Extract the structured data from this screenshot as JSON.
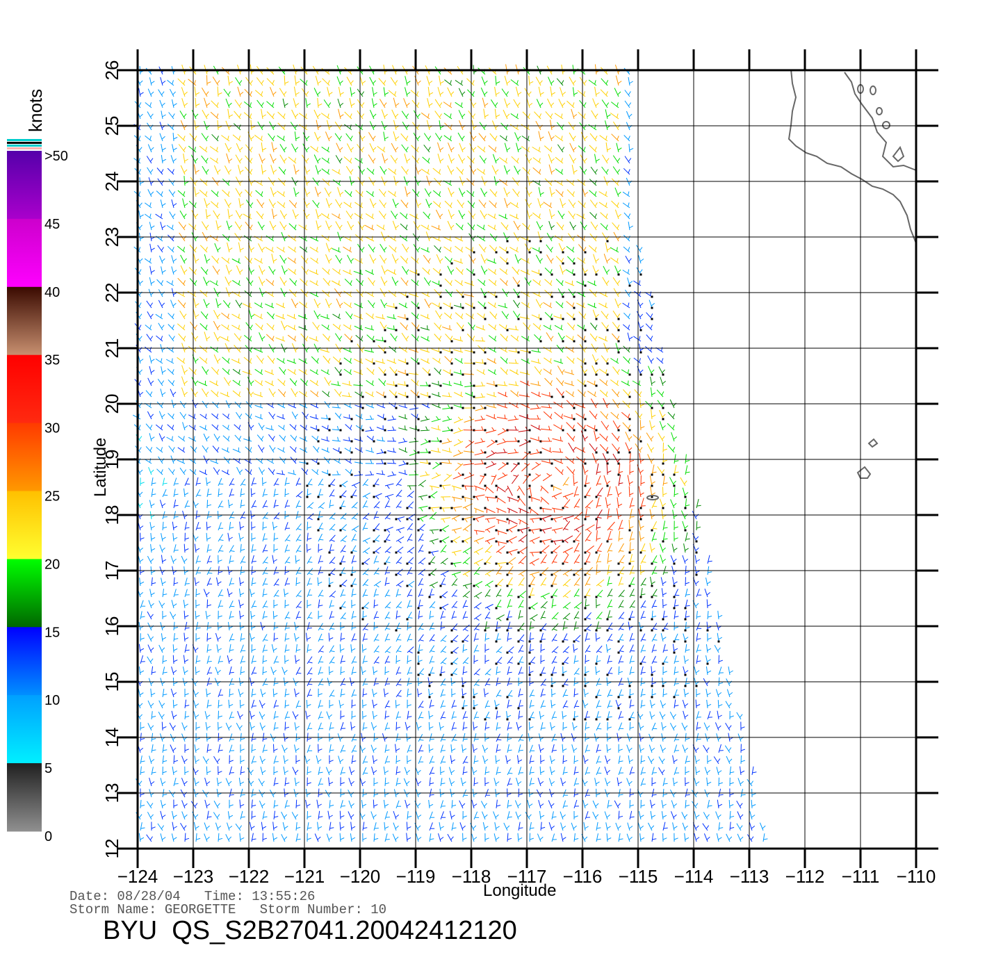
{
  "map": {
    "x_axis": {
      "title": "Longitude",
      "ticks": [
        "-124",
        "-123",
        "-122",
        "-121",
        "-120",
        "-119",
        "-118",
        "-117",
        "-116",
        "-115",
        "-114",
        "-113",
        "-112",
        "-111",
        "-110"
      ]
    },
    "y_axis": {
      "title": "Latitude",
      "ticks": [
        "12",
        "13",
        "14",
        "15",
        "16",
        "17",
        "18",
        "19",
        "20",
        "21",
        "22",
        "23",
        "24",
        "25",
        "26"
      ]
    },
    "lon_range": [
      -124,
      -110
    ],
    "lat_range": [
      12,
      26
    ],
    "grid": true,
    "storm_center_lonlat": [
      -116.5,
      18.6
    ]
  },
  "colorbar": {
    "unit_label": "knots",
    "labels": [
      ">50",
      "45",
      "40",
      "35",
      "30",
      "25",
      "20",
      "15",
      "10",
      "5",
      "0"
    ],
    "bands": [
      {
        "from": "#5500aa",
        "to": "#aa00cc"
      },
      {
        "from": "#cc00cc",
        "to": "#ff00ff"
      },
      {
        "from": "#3a0a00",
        "to": "#c89070"
      },
      {
        "from": "#ff0000",
        "to": "#ff2a10"
      },
      {
        "from": "#ff3a00",
        "to": "#ff9900"
      },
      {
        "from": "#ffc000",
        "to": "#ffff30"
      },
      {
        "from": "#00ff00",
        "to": "#006600"
      },
      {
        "from": "#0000ff",
        "to": "#0090ff"
      },
      {
        "from": "#00a0ff",
        "to": "#00f0ff"
      },
      {
        "from": "#202020",
        "to": "#909090"
      }
    ],
    "top_stripes": [
      "#00cccc",
      "#000000",
      "#00cccc",
      "#ffb0b0"
    ]
  },
  "footer": {
    "date_line": "Date: 08/28/04   Time: 13:55:26",
    "storm_line": "Storm Name: GEORGETTE   Storm Number: 10",
    "product": "BYU  QS_S2B27041.20042412120"
  }
}
